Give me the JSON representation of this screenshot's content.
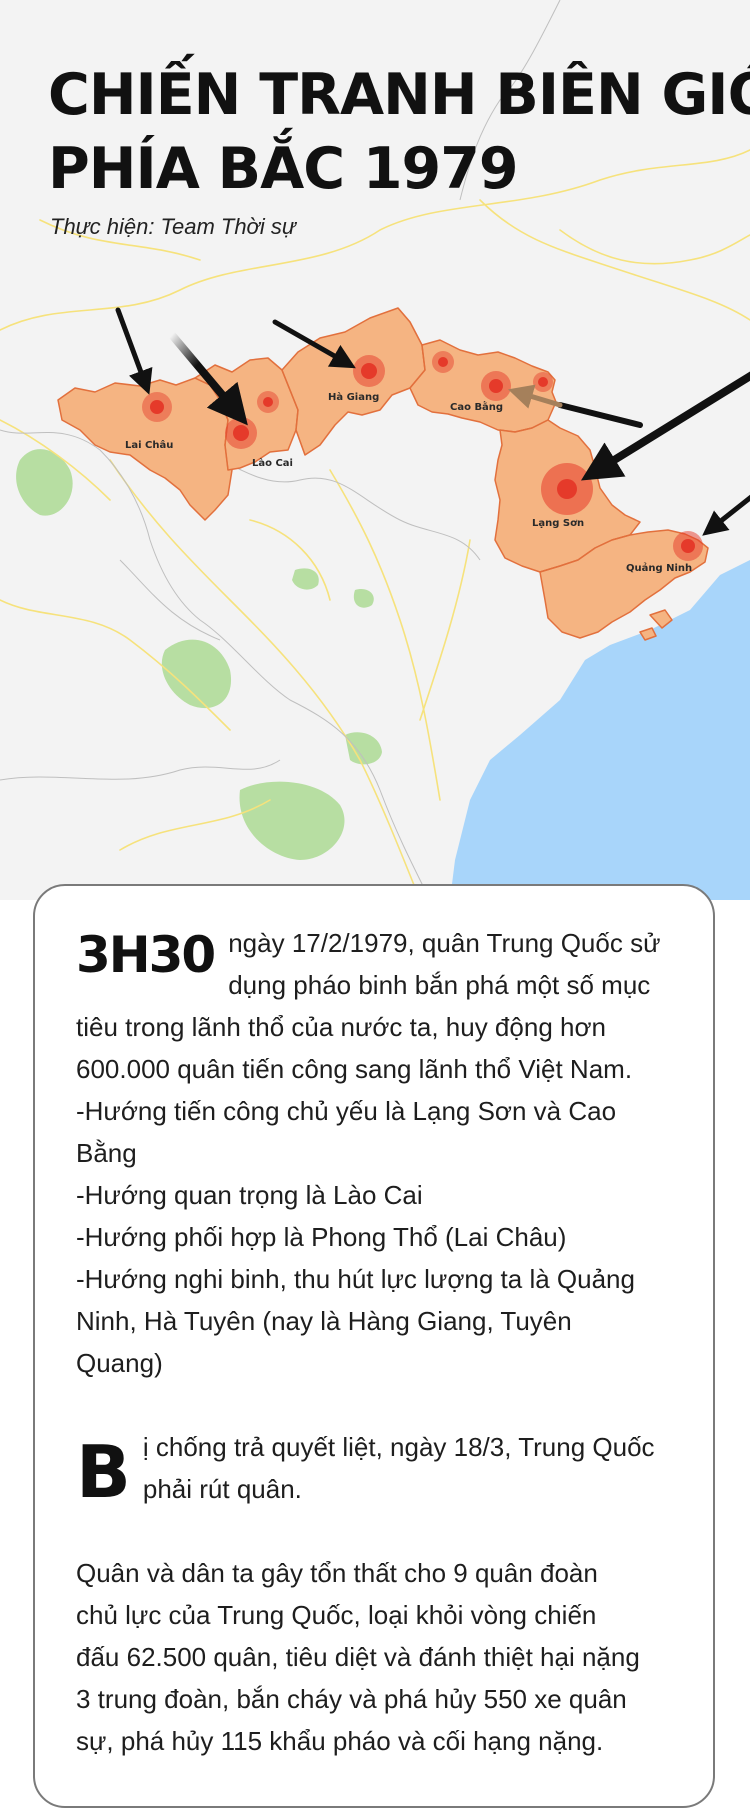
{
  "header": {
    "title_lines": [
      "CHIẾN TRANH BIÊN GIỚI",
      "PHÍA BẮC 1979"
    ],
    "credit": "Thực hiện: Team Thời sự"
  },
  "map": {
    "labels": {
      "lai_chau": "Lai Châu",
      "lao_cai": "Lào Cai",
      "ha_giang": "Hà Giang",
      "cao_bang": "Cao Bằng",
      "lang_son": "Lạng Sơn",
      "quang_ninh": "Quảng Ninh"
    },
    "colors": {
      "border_provinces": "#f5b482",
      "province_outline": "#e2703d",
      "attack_marker": "#e53a2a",
      "sea": "#a8d5fa",
      "forest": "#b7dea2",
      "roads": "#f6e27c",
      "arrows": "#111111",
      "retreat_arrow": "#a5805b"
    }
  },
  "article": {
    "p1_dropcap": "3H30",
    "p1_lines": [
      "ngày 17/2/1979, quân Trung Quốc sử",
      "dụng pháo binh bắn phá một số mục",
      "tiêu trong lãnh thổ của nước ta, huy động hơn",
      "600.000 quân tiến công sang lãnh thổ Việt Nam.",
      "-Hướng tiến công chủ yếu là Lạng Sơn và Cao",
      "Bằng",
      "-Hướng quan trọng là Lào Cai",
      "-Hướng phối hợp là Phong Thổ (Lai Châu)",
      "-Hướng nghi binh, thu hút lực lượng ta là Quảng",
      "Ninh, Hà Tuyên (nay là Hàng Giang, Tuyên",
      "Quang)"
    ],
    "p2_dropcap": "B",
    "p2_lines": [
      "ị chống trả quyết liệt, ngày 18/3, Trung Quốc",
      "phải rút quân."
    ],
    "p3_lines": [
      "Quân và dân ta gây tổn thất cho 9 quân đoàn",
      "chủ lực của Trung Quốc, loại khỏi vòng chiến",
      "đấu 62.500 quân, tiêu diệt và đánh thiệt hại nặng",
      "3 trung đoàn, bắn cháy và phá hủy 550 xe quân",
      "sự, phá hủy 115 khẩu pháo và cối hạng nặng."
    ]
  }
}
